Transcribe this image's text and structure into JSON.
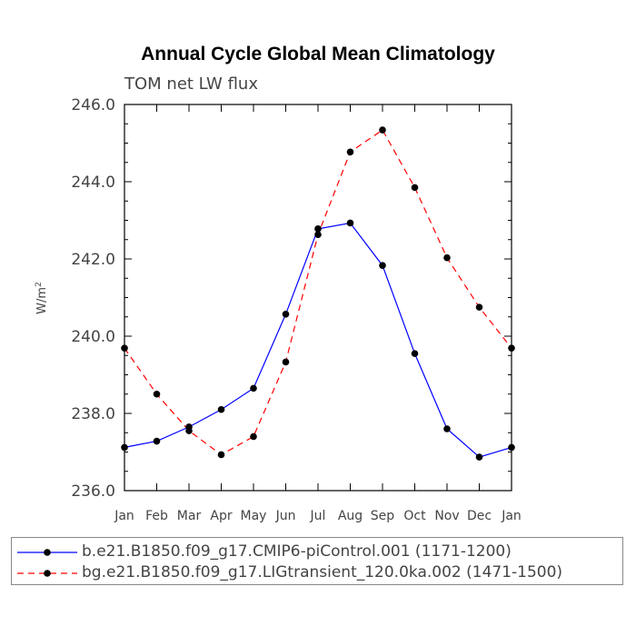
{
  "chart_data": {
    "type": "line",
    "title": "Annual Cycle Global Mean Climatology",
    "subtitle": "TOM net LW flux",
    "ylabel": "W/m",
    "ylabel_sup": "2",
    "ylim": [
      236.0,
      246.0
    ],
    "yticks": [
      "236.0",
      "238.0",
      "240.0",
      "242.0",
      "244.0",
      "246.0"
    ],
    "categories": [
      "Jan",
      "Feb",
      "Mar",
      "Apr",
      "May",
      "Jun",
      "Jul",
      "Aug",
      "Sep",
      "Oct",
      "Nov",
      "Dec",
      "Jan"
    ],
    "series": [
      {
        "name": "b.e21.B1850.f09_g17.CMIP6-piControl.001 (1171-1200)",
        "color": "#0000ff",
        "dash": "solid",
        "values": [
          237.12,
          237.28,
          237.65,
          238.1,
          238.65,
          240.57,
          242.78,
          242.93,
          241.83,
          239.55,
          237.6,
          236.87,
          237.12
        ]
      },
      {
        "name": "bg.e21.B1850.f09_g17.LIGtransient_120.0ka.002 (1471-1500)",
        "color": "#ff0000",
        "dash": "dashed",
        "values": [
          239.69,
          238.5,
          237.55,
          236.93,
          237.4,
          239.33,
          242.63,
          244.77,
          245.34,
          243.85,
          242.03,
          240.75,
          239.69
        ]
      }
    ],
    "grid": false,
    "legend_position": "bottom"
  }
}
